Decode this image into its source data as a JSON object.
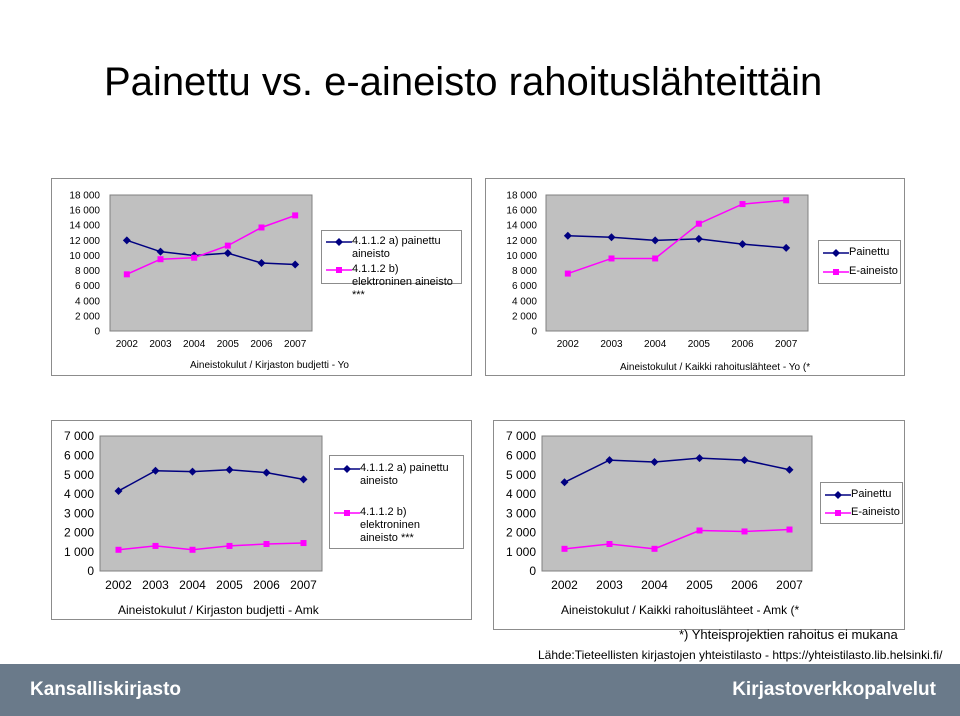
{
  "page": {
    "title": "Painettu vs. e-aineisto rahoituslähteittäin",
    "notes": {
      "footnote": "*) Yhteisprojektien rahoitus ei mukana",
      "source": "Lähde:Tieteellisten kirjastojen yhteistilasto - https://yhteistilasto.lib.helsinki.fi/"
    },
    "footer": {
      "left": "Kansalliskirjasto",
      "right": "Kirjastoverkkopalvelut"
    }
  },
  "colors": {
    "painettu": "#000080",
    "e_aineisto": "#ff00ff",
    "plot_bg": "#c0c0c0",
    "footer_bg": "#6a7a8a"
  },
  "chart_data": [
    {
      "type": "line",
      "xlabel": "Aineistokulut / Kirjaston budjetti - Yo",
      "categories": [
        "2002",
        "2003",
        "2004",
        "2005",
        "2006",
        "2007"
      ],
      "ylim": [
        0,
        18000
      ],
      "yticks": [
        "0",
        "2 000",
        "4 000",
        "6 000",
        "8 000",
        "10 000",
        "12 000",
        "14 000",
        "16 000",
        "18 000"
      ],
      "legend": "right",
      "series": [
        {
          "name": "4.1.1.2 a) painettu aineisto",
          "values": [
            12000,
            10500,
            10000,
            10300,
            9000,
            8800
          ]
        },
        {
          "name": "4.1.1.2 b) elektroninen aineisto ***",
          "values": [
            7500,
            9500,
            9700,
            11300,
            13700,
            15300
          ]
        }
      ]
    },
    {
      "type": "line",
      "xlabel": "Aineistokulut / Kaikki rahoituslähteet - Yo (*",
      "categories": [
        "2002",
        "2003",
        "2004",
        "2005",
        "2006",
        "2007"
      ],
      "ylim": [
        0,
        18000
      ],
      "yticks": [
        "0",
        "2 000",
        "4 000",
        "6 000",
        "8 000",
        "10 000",
        "12 000",
        "14 000",
        "16 000",
        "18 000"
      ],
      "legend": "right",
      "series": [
        {
          "name": "Painettu",
          "values": [
            12600,
            12400,
            12000,
            12200,
            11500,
            11000
          ]
        },
        {
          "name": "E-aineisto",
          "values": [
            7600,
            9600,
            9600,
            14200,
            16800,
            17300
          ]
        }
      ]
    },
    {
      "type": "line",
      "xlabel": "Aineistokulut / Kirjaston budjetti - Amk",
      "categories": [
        "2002",
        "2003",
        "2004",
        "2005",
        "2006",
        "2007"
      ],
      "ylim": [
        0,
        7000
      ],
      "yticks": [
        "0",
        "1 000",
        "2 000",
        "3 000",
        "4 000",
        "5 000",
        "6 000",
        "7 000"
      ],
      "legend": "right",
      "series": [
        {
          "name": "4.1.1.2 a) painettu aineisto",
          "values": [
            4150,
            5200,
            5150,
            5250,
            5100,
            4750
          ]
        },
        {
          "name": "4.1.1.2 b) elektroninen aineisto ***",
          "values": [
            1100,
            1300,
            1100,
            1300,
            1400,
            1450
          ]
        }
      ]
    },
    {
      "type": "line",
      "xlabel": "Aineistokulut / Kaikki rahoituslähteet - Amk (*",
      "categories": [
        "2002",
        "2003",
        "2004",
        "2005",
        "2006",
        "2007"
      ],
      "ylim": [
        0,
        7000
      ],
      "yticks": [
        "0",
        "1 000",
        "2 000",
        "3 000",
        "4 000",
        "5 000",
        "6 000",
        "7 000"
      ],
      "legend": "right",
      "series": [
        {
          "name": "Painettu",
          "values": [
            4600,
            5750,
            5650,
            5850,
            5750,
            5250
          ]
        },
        {
          "name": "E-aineisto",
          "values": [
            1150,
            1400,
            1150,
            2100,
            2050,
            2150
          ]
        }
      ]
    }
  ]
}
